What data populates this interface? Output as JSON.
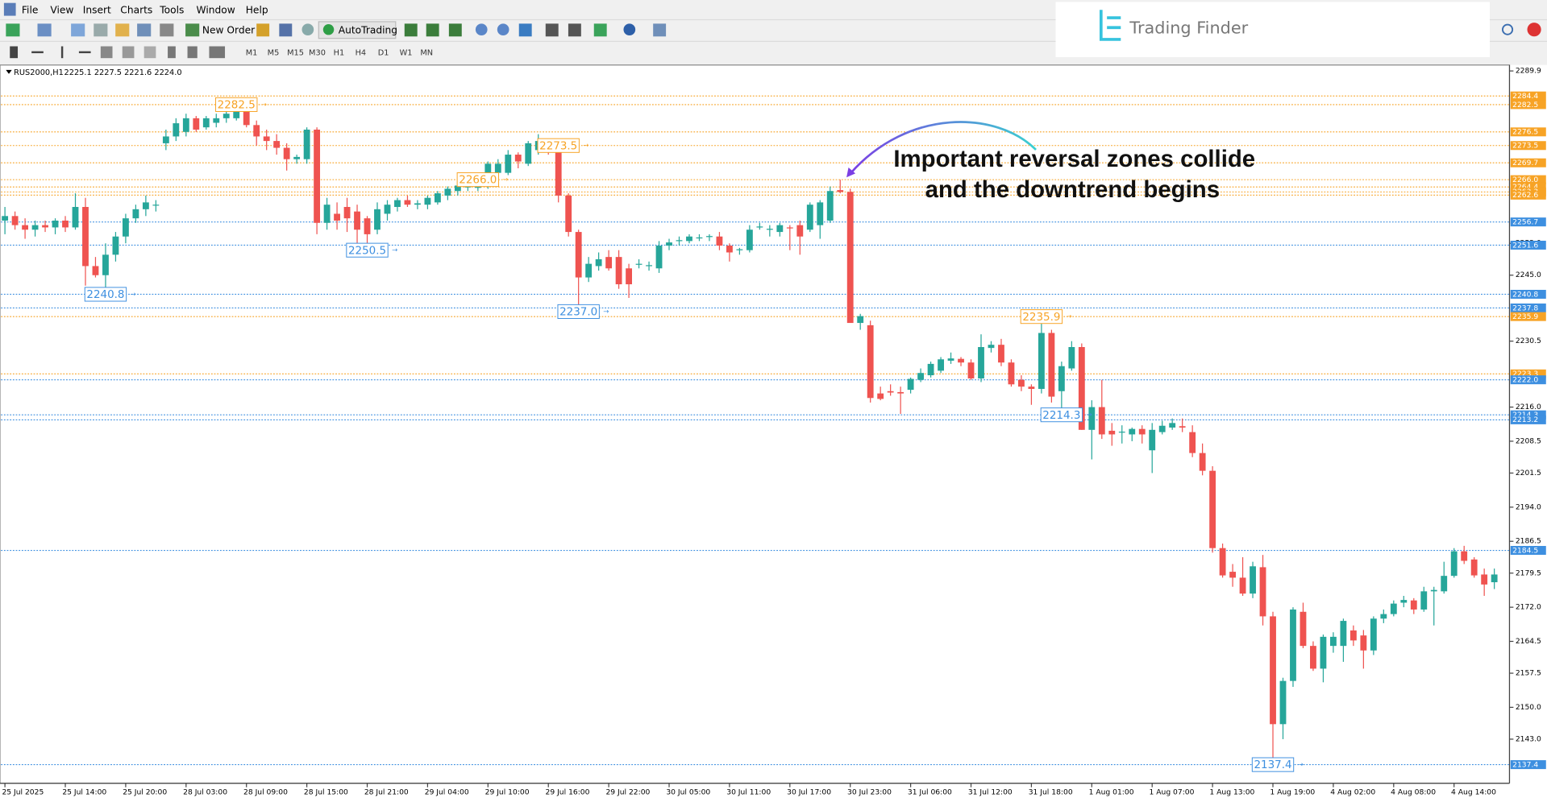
{
  "menu": [
    "File",
    "View",
    "Insert",
    "Charts",
    "Tools",
    "Window",
    "Help"
  ],
  "toolbar": {
    "new_order": "New Order",
    "auto_trading": "AutoTrading"
  },
  "timeframes": [
    "M1",
    "M5",
    "M15",
    "M30",
    "H1",
    "H4",
    "D1",
    "W1",
    "MN"
  ],
  "logo": "Trading Finder",
  "chart_data": {
    "type": "candlestick",
    "symbol": "RUS2000,H1",
    "ohlc_header": "2225.1 2227.5 2221.6 2224.0",
    "annotation": [
      "Important reversal zones collide",
      "and the downtrend begins"
    ],
    "up_color": "#26a69a",
    "down_color": "#ef5350",
    "ylim": [
      2133.3,
      2291.2
    ],
    "yticks": [
      2289.9,
      {
        "value": 2252,
        "label": "2252.0"
      },
      {
        "value": 2245,
        "label": "2245.0"
      },
      2230.5,
      {
        "value": 2216,
        "label": "2216.0"
      },
      2208.5,
      2201.5,
      {
        "value": 2194,
        "label": "2194.0"
      },
      2186.5,
      2179.5,
      {
        "value": 2172,
        "label": "2172.0"
      },
      2164.5,
      2157.5,
      {
        "value": 2150,
        "label": "2150.0"
      },
      {
        "value": 2143,
        "label": "2143.0"
      }
    ],
    "categories": [
      "25 Jul 2025",
      null,
      null,
      null,
      null,
      null,
      "25 Jul 14:00",
      null,
      null,
      null,
      null,
      null,
      "25 Jul 20:00",
      null,
      null,
      null,
      null,
      null,
      "28 Jul 03:00",
      null,
      null,
      null,
      null,
      null,
      "28 Jul 09:00",
      null,
      null,
      null,
      null,
      null,
      "28 Jul 15:00",
      null,
      null,
      null,
      null,
      null,
      "28 Jul 21:00",
      null,
      null,
      null,
      null,
      null,
      "29 Jul 04:00",
      null,
      null,
      null,
      null,
      null,
      "29 Jul 10:00",
      null,
      null,
      null,
      null,
      null,
      "29 Jul 16:00",
      null,
      null,
      null,
      null,
      null,
      "29 Jul 22:00",
      null,
      null,
      null,
      null,
      null,
      "30 Jul 05:00",
      null,
      null,
      null,
      null,
      null,
      "30 Jul 11:00",
      null,
      null,
      null,
      null,
      null,
      "30 Jul 17:00",
      null,
      null,
      null,
      null,
      null,
      "30 Jul 23:00",
      null,
      null,
      null,
      null,
      null,
      "31 Jul 06:00",
      null,
      null,
      null,
      null,
      null,
      "31 Jul 12:00",
      null,
      null,
      null,
      null,
      null,
      "31 Jul 18:00",
      null,
      null,
      null,
      null,
      null,
      "1 Aug 01:00",
      null,
      null,
      null,
      null,
      null,
      "1 Aug 07:00",
      null,
      null,
      null,
      null,
      null,
      "1 Aug 13:00",
      null,
      null,
      null,
      null,
      null,
      "1 Aug 19:00",
      null,
      null,
      null,
      null,
      null,
      "4 Aug 02:00",
      null,
      null,
      null,
      null,
      null,
      "4 Aug 08:00",
      null,
      null,
      null,
      null,
      null,
      "4 Aug 14:00",
      null,
      null,
      null,
      null
    ],
    "open": [
      2257.0,
      2258.0,
      2256.0,
      2255.0,
      2256.0,
      2255.5,
      2257.0,
      2255.5,
      2260.0,
      2247.0,
      2245.0,
      2249.5,
      2253.5,
      2257.5,
      2259.5,
      2260.5,
      2274.0,
      2275.5,
      2276.5,
      2279.5,
      2277.5,
      2278.5,
      2279.5,
      2279.5,
      2281.7,
      2278.0,
      2275.5,
      2274.5,
      2273.0,
      2270.5,
      2270.5,
      2277.0,
      2256.5,
      2258.5,
      2260.0,
      2259.0,
      2257.5,
      2255.0,
      2258.5,
      2260.0,
      2261.5,
      2260.5,
      2260.5,
      2261.0,
      2262.5,
      2263.5,
      2264.5,
      2264.2,
      2265.0,
      2267.5,
      2267.5,
      2271.5,
      2269.5,
      2272.5,
      2274.5,
      2273.0,
      2262.5,
      2254.5,
      2244.5,
      2247.0,
      2249.0,
      2249.0,
      2246.5,
      2247.5,
      2247.0,
      2246.5,
      2251.5,
      2252.5,
      2252.5,
      2253.2,
      2253.5,
      2253.5,
      2251.5,
      2250.5,
      2250.5,
      2255.5,
      2255.0,
      2254.5,
      2255.5,
      2256.0,
      2255.0,
      2256.0,
      2257.0,
      2263.7,
      2263.3,
      2234.5,
      2234.0,
      2219.0,
      2219.5,
      2219.3,
      2219.8,
      2222.0,
      2223.0,
      2224.0,
      2226.2,
      2226.6,
      2225.8,
      2222.3,
      2229.0,
      2229.7,
      2225.8,
      2222.0,
      2220.5,
      2220.0,
      2232.3,
      2219.5,
      2224.5,
      2229.2,
      2211.0,
      2216.0,
      2210.8,
      2210.5,
      2210.0,
      2211.2,
      2206.5,
      2210.5,
      2211.5,
      2211.8,
      2210.5,
      2205.9,
      2202.0,
      2185.0,
      2179.8,
      2178.5,
      2175.0,
      2180.8,
      2170.0,
      2146.3,
      2155.8,
      2171.0,
      2163.5,
      2158.5,
      2163.5,
      2163.5,
      2166.9,
      2165.8,
      2162.5,
      2169.5,
      2170.5,
      2173.0,
      2173.5,
      2171.5,
      2175.5,
      2175.5,
      2178.9,
      2184.3,
      2182.5,
      2179.2,
      2177.5
    ],
    "high": [
      2260.0,
      2259.0,
      2257.5,
      2257.0,
      2257.0,
      2257.5,
      2258.0,
      2263.0,
      2262.0,
      2249.0,
      2252.0,
      2254.5,
      2258.5,
      2260.5,
      2262.5,
      2261.5,
      2277.0,
      2279.5,
      2280.5,
      2280.0,
      2280.0,
      2280.5,
      2281.0,
      2282.5,
      2282.5,
      2279.0,
      2277.0,
      2276.0,
      2274.0,
      2271.5,
      2277.5,
      2277.5,
      2262.0,
      2261.0,
      2262.0,
      2260.5,
      2258.0,
      2261.0,
      2261.5,
      2262.0,
      2262.5,
      2261.5,
      2262.5,
      2263.5,
      2264.5,
      2265.0,
      2265.5,
      2266.0,
      2270.0,
      2270.5,
      2272.5,
      2272.0,
      2274.5,
      2276.0,
      2275.0,
      2273.5,
      2263.0,
      2255.0,
      2249.0,
      2250.0,
      2250.5,
      2250.5,
      2247.5,
      2248.5,
      2248.0,
      2252.5,
      2253.0,
      2253.5,
      2254.0,
      2254.0,
      2254.0,
      2254.5,
      2252.0,
      2251.0,
      2256.0,
      2256.5,
      2256.0,
      2256.5,
      2256.0,
      2257.0,
      2261.0,
      2261.5,
      2264.5,
      2266.0,
      2264.0,
      2236.5,
      2235.0,
      2220.5,
      2221.0,
      2220.5,
      2222.5,
      2224.5,
      2226.0,
      2227.0,
      2228.0,
      2227.0,
      2226.5,
      2232.0,
      2230.5,
      2231.0,
      2226.5,
      2223.0,
      2221.0,
      2235.9,
      2233.0,
      2226.0,
      2230.5,
      2230.0,
      2217.5,
      2222.0,
      2212.5,
      2212.0,
      2211.5,
      2212.0,
      2212.5,
      2213.0,
      2213.5,
      2213.5,
      2212.0,
      2208.0,
      2203.0,
      2186.0,
      2181.5,
      2183.0,
      2182.0,
      2183.5,
      2171.0,
      2156.5,
      2172.0,
      2173.0,
      2164.5,
      2166.0,
      2166.5,
      2169.5,
      2168.0,
      2167.0,
      2170.0,
      2171.5,
      2173.5,
      2174.5,
      2174.0,
      2176.5,
      2176.5,
      2182.0,
      2185.0,
      2185.5,
      2183.0,
      2180.5,
      2180.5
    ],
    "low": [
      2254.0,
      2255.0,
      2253.0,
      2253.5,
      2254.5,
      2254.0,
      2254.5,
      2255.0,
      2242.7,
      2244.5,
      2240.8,
      2248.0,
      2252.0,
      2256.5,
      2258.0,
      2259.0,
      2272.5,
      2274.5,
      2275.5,
      2276.5,
      2277.0,
      2277.5,
      2278.5,
      2279.0,
      2277.5,
      2273.5,
      2272.5,
      2271.5,
      2268.0,
      2269.5,
      2269.5,
      2254.0,
      2255.0,
      2255.0,
      2254.5,
      2252.0,
      2250.5,
      2254.0,
      2257.0,
      2259.0,
      2260.0,
      2259.5,
      2259.5,
      2260.5,
      2261.5,
      2262.5,
      2263.5,
      2263.5,
      2264.0,
      2266.5,
      2267.0,
      2268.5,
      2269.0,
      2271.5,
      2271.5,
      2261.0,
      2253.5,
      2238.0,
      2243.5,
      2246.0,
      2246.0,
      2242.0,
      2240.0,
      2246.5,
      2246.0,
      2245.5,
      2250.5,
      2251.5,
      2252.0,
      2252.5,
      2252.5,
      2250.5,
      2248.0,
      2249.5,
      2250.0,
      2255.0,
      2253.5,
      2253.5,
      2250.5,
      2249.5,
      2254.5,
      2253.0,
      2256.5,
      2263.0,
      2234.5,
      2233.0,
      2217.0,
      2217.5,
      2218.5,
      2214.5,
      2219.0,
      2221.5,
      2222.5,
      2223.5,
      2225.5,
      2225.0,
      2222.0,
      2221.5,
      2228.0,
      2225.0,
      2220.5,
      2219.5,
      2216.5,
      2219.0,
      2217.0,
      2214.3,
      2224.0,
      2211.0,
      2204.5,
      2209.0,
      2207.5,
      2208.0,
      2208.5,
      2208.0,
      2201.5,
      2210.0,
      2211.0,
      2210.5,
      2205.0,
      2201.0,
      2184.0,
      2178.5,
      2176.5,
      2174.5,
      2174.0,
      2168.0,
      2137.4,
      2143.0,
      2154.5,
      2163.0,
      2158.0,
      2155.5,
      2162.0,
      2160.0,
      2163.5,
      2158.5,
      2161.5,
      2168.5,
      2170.0,
      2172.0,
      2170.5,
      2171.0,
      2168.0,
      2175.0,
      2178.5,
      2181.5,
      2178.5,
      2174.5,
      2176.0
    ],
    "close": [
      2258.0,
      2256.0,
      2255.0,
      2256.0,
      2255.5,
      2257.0,
      2255.5,
      2260.0,
      2247.0,
      2245.0,
      2249.5,
      2253.5,
      2257.5,
      2259.5,
      2261.0,
      2260.5,
      2275.5,
      2278.4,
      2279.5,
      2277.0,
      2279.5,
      2279.5,
      2280.5,
      2281.7,
      2278.0,
      2275.5,
      2274.5,
      2273.0,
      2270.5,
      2271.0,
      2277.0,
      2256.5,
      2260.5,
      2257.0,
      2257.5,
      2255.0,
      2254.0,
      2259.5,
      2260.5,
      2261.5,
      2260.5,
      2260.8,
      2262.0,
      2263.0,
      2264.0,
      2264.7,
      2264.5,
      2265.5,
      2269.5,
      2269.5,
      2271.5,
      2270.0,
      2274.0,
      2274.5,
      2272.5,
      2262.5,
      2254.5,
      2244.5,
      2247.5,
      2248.5,
      2246.5,
      2243.0,
      2243.0,
      2247.5,
      2247.2,
      2251.5,
      2252.2,
      2252.7,
      2253.5,
      2253.3,
      2253.6,
      2251.5,
      2250.0,
      2250.7,
      2255.0,
      2255.7,
      2255.2,
      2256.0,
      2255.3,
      2253.5,
      2260.5,
      2261.0,
      2263.5,
      2263.3,
      2234.5,
      2236.0,
      2218.0,
      2217.8,
      2219.2,
      2219.0,
      2222.2,
      2223.5,
      2225.5,
      2226.5,
      2226.7,
      2225.8,
      2222.3,
      2229.2,
      2229.7,
      2225.8,
      2221.0,
      2220.5,
      2220.0,
      2232.3,
      2218.3,
      2225.0,
      2229.2,
      2211.0,
      2216.0,
      2210.0,
      2210.0,
      2210.6,
      2211.2,
      2210.0,
      2211.0,
      2211.9,
      2212.5,
      2211.5,
      2205.9,
      2202.0,
      2185.0,
      2179.0,
      2178.5,
      2175.0,
      2181.0,
      2170.0,
      2146.3,
      2155.8,
      2171.5,
      2163.5,
      2158.5,
      2165.5,
      2165.5,
      2169.0,
      2164.7,
      2162.5,
      2169.5,
      2170.5,
      2172.8,
      2173.6,
      2171.5,
      2175.5,
      2175.8,
      2178.9,
      2184.3,
      2182.2,
      2179.0,
      2177.0,
      2179.2
    ],
    "levels": [
      {
        "value": 2284.4,
        "color": "#f7a325"
      },
      {
        "value": 2282.5,
        "color": "#f7a325"
      },
      {
        "value": 2276.5,
        "color": "#f7a325"
      },
      {
        "value": 2273.5,
        "color": "#f7a325"
      },
      {
        "value": 2269.7,
        "color": "#f7a325"
      },
      {
        "value": 2266,
        "label": "2266.0",
        "color": "#f7a325"
      },
      {
        "value": 2264.4,
        "color": "#f7a325"
      },
      {
        "value": 2263.3,
        "color": "#f7a325"
      },
      {
        "value": 2262.6,
        "color": "#f7a325"
      },
      {
        "value": 2256.7,
        "color": "#3d8fe0"
      },
      {
        "value": 2251.6,
        "color": "#3d8fe0"
      },
      {
        "value": 2240.8,
        "color": "#3d8fe0"
      },
      {
        "value": 2237.8,
        "color": "#3d8fe0"
      },
      {
        "value": 2235.9,
        "color": "#f7a325"
      },
      {
        "value": 2223.3,
        "color": "#f7a325"
      },
      {
        "value": 2222,
        "label": "2222.0",
        "color": "#3d8fe0"
      },
      {
        "value": 2214.3,
        "color": "#3d8fe0"
      },
      {
        "value": 2213.2,
        "color": "#3d8fe0"
      },
      {
        "value": 2184.5,
        "color": "#3d8fe0"
      },
      {
        "value": 2137.4,
        "color": "#3d8fe0"
      }
    ],
    "callouts": [
      {
        "value": 2282.5,
        "side": "high",
        "color": "#f7a325"
      },
      {
        "value": 2273.5,
        "side": "high",
        "color": "#f7a325"
      },
      {
        "value": 2266,
        "label": "2266.0",
        "side": "high",
        "color": "#f7a325"
      },
      {
        "value": 2235.9,
        "side": "high",
        "color": "#f7a325"
      },
      {
        "value": 2250.5,
        "side": "low",
        "color": "#3d8fe0"
      },
      {
        "value": 2240.8,
        "side": "low",
        "color": "#3d8fe0"
      },
      {
        "value": 2237,
        "label": "2237.0",
        "side": "low",
        "color": "#3d8fe0"
      },
      {
        "value": 2214.3,
        "side": "low",
        "color": "#3d8fe0"
      },
      {
        "value": 2137.4,
        "side": "low",
        "color": "#3d8fe0"
      }
    ]
  }
}
